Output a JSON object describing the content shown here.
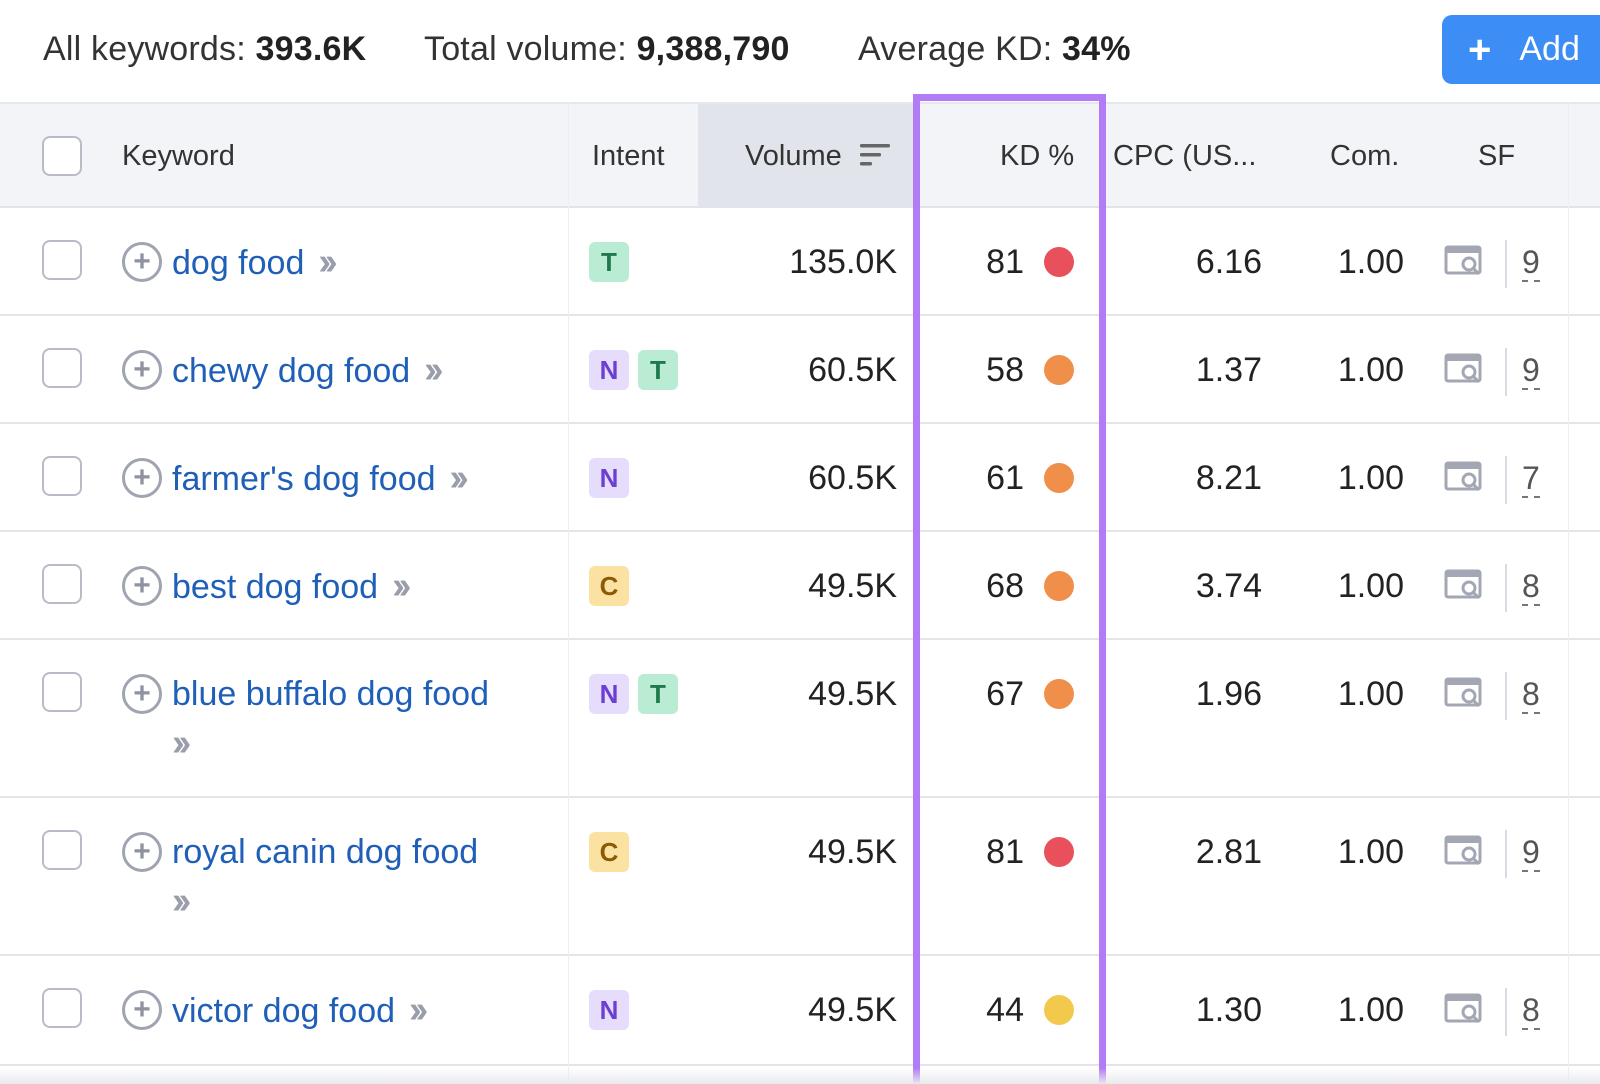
{
  "summary": {
    "all_keywords_label": "All keywords:",
    "all_keywords_value": "393.6K",
    "total_volume_label": "Total volume:",
    "total_volume_value": "9,388,790",
    "average_kd_label": "Average KD:",
    "average_kd_value": "34%"
  },
  "add_button": {
    "icon": "plus-icon",
    "label": "Add"
  },
  "columns": {
    "keyword": "Keyword",
    "intent": "Intent",
    "volume": "Volume",
    "kd": "KD %",
    "cpc": "CPC (US...",
    "com": "Com.",
    "sf": "SF"
  },
  "colors": {
    "kd_red": "#e8505b",
    "kd_orange": "#ef8f4a",
    "kd_yellow": "#f2c94c",
    "highlight": "#b17cf5",
    "link": "#1f5fb8",
    "add_button": "#3c8df5"
  },
  "rows": [
    {
      "keyword": "dog food",
      "intent": [
        "T"
      ],
      "volume": "135.0K",
      "kd": "81",
      "kd_level": "red",
      "cpc": "6.16",
      "com": "1.00",
      "sf": "9"
    },
    {
      "keyword": "chewy dog food",
      "intent": [
        "N",
        "T"
      ],
      "volume": "60.5K",
      "kd": "58",
      "kd_level": "orange",
      "cpc": "1.37",
      "com": "1.00",
      "sf": "9"
    },
    {
      "keyword": "farmer's dog food",
      "intent": [
        "N"
      ],
      "volume": "60.5K",
      "kd": "61",
      "kd_level": "orange",
      "cpc": "8.21",
      "com": "1.00",
      "sf": "7"
    },
    {
      "keyword": "best dog food",
      "intent": [
        "C"
      ],
      "volume": "49.5K",
      "kd": "68",
      "kd_level": "orange",
      "cpc": "3.74",
      "com": "1.00",
      "sf": "8"
    },
    {
      "keyword": "blue buffalo dog food",
      "intent": [
        "N",
        "T"
      ],
      "volume": "49.5K",
      "kd": "67",
      "kd_level": "orange",
      "cpc": "1.96",
      "com": "1.00",
      "sf": "8"
    },
    {
      "keyword": "royal canin dog food",
      "intent": [
        "C"
      ],
      "volume": "49.5K",
      "kd": "81",
      "kd_level": "red",
      "cpc": "2.81",
      "com": "1.00",
      "sf": "9"
    },
    {
      "keyword": "victor dog food",
      "intent": [
        "N"
      ],
      "volume": "49.5K",
      "kd": "44",
      "kd_level": "yellow",
      "cpc": "1.30",
      "com": "1.00",
      "sf": "8"
    }
  ]
}
